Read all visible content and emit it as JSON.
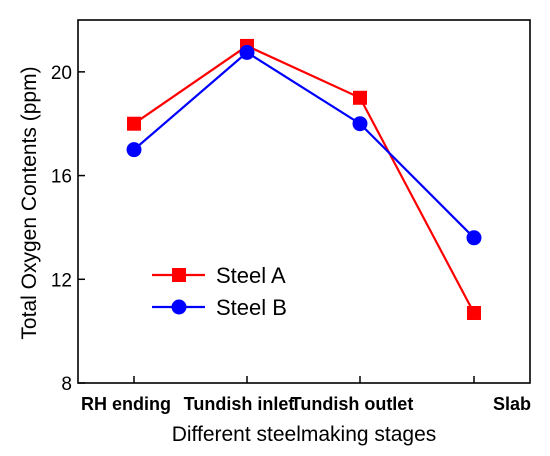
{
  "chart_data": {
    "type": "line",
    "categories": [
      "RH ending",
      "Tundish inlet",
      "Tundish outlet",
      "Slab"
    ],
    "series": [
      {
        "name": "Steel A",
        "color": "#ff0000",
        "marker": "square",
        "values": [
          18.0,
          21.0,
          19.0,
          10.7
        ]
      },
      {
        "name": "Steel B",
        "color": "#0000ff",
        "marker": "circle",
        "values": [
          17.0,
          20.75,
          18.0,
          13.6
        ]
      }
    ],
    "xlabel": "Different steelmaking stages",
    "ylabel": "Total Oxygen Contents (ppm)",
    "ylim": [
      8,
      22
    ],
    "yticks": [
      8,
      12,
      16,
      20
    ],
    "grid": false,
    "legend_position": "lower-left"
  }
}
